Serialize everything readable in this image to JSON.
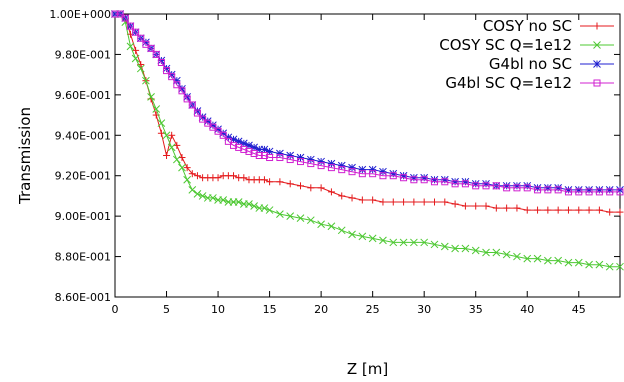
{
  "chart_data": {
    "type": "line",
    "xlabel": "Z [m]",
    "ylabel": "Transmission",
    "xlim": [
      0,
      49
    ],
    "ylim": [
      0.86,
      1.0
    ],
    "grid": false,
    "legend_position": "top-right",
    "x_ticks": [
      {
        "value": 0,
        "label": "0"
      },
      {
        "value": 5,
        "label": "5"
      },
      {
        "value": 10,
        "label": "10"
      },
      {
        "value": 15,
        "label": "15"
      },
      {
        "value": 20,
        "label": "20"
      },
      {
        "value": 25,
        "label": "25"
      },
      {
        "value": 30,
        "label": "30"
      },
      {
        "value": 35,
        "label": "35"
      },
      {
        "value": 40,
        "label": "40"
      },
      {
        "value": 45,
        "label": "45"
      }
    ],
    "y_ticks": [
      {
        "value": 0.86,
        "label": "8.60E-001"
      },
      {
        "value": 0.88,
        "label": "8.80E-001"
      },
      {
        "value": 0.9,
        "label": "9.00E-001"
      },
      {
        "value": 0.92,
        "label": "9.20E-001"
      },
      {
        "value": 0.94,
        "label": "9.40E-001"
      },
      {
        "value": 0.96,
        "label": "9.60E-001"
      },
      {
        "value": 0.98,
        "label": "9.80E-001"
      },
      {
        "value": 1.0,
        "label": "1.00E+000"
      }
    ],
    "series": [
      {
        "name": "COSY no SC",
        "color": "#e41a1c",
        "marker": "plus",
        "x": [
          0,
          0.5,
          1,
          1.5,
          2,
          2.5,
          3,
          3.5,
          4,
          4.5,
          5,
          5.5,
          6,
          6.5,
          7,
          7.5,
          8,
          8.5,
          9,
          9.5,
          10,
          10.5,
          11,
          11.5,
          12,
          12.5,
          13,
          13.5,
          14,
          14.5,
          15,
          16,
          17,
          18,
          19,
          20,
          21,
          22,
          23,
          24,
          25,
          26,
          27,
          28,
          29,
          30,
          31,
          32,
          33,
          34,
          35,
          36,
          37,
          38,
          39,
          40,
          41,
          42,
          43,
          44,
          45,
          46,
          47,
          48,
          49
        ],
        "y": [
          1.0,
          1.0,
          0.998,
          0.99,
          0.982,
          0.975,
          0.967,
          0.958,
          0.95,
          0.941,
          0.93,
          0.94,
          0.935,
          0.929,
          0.924,
          0.921,
          0.92,
          0.919,
          0.919,
          0.919,
          0.919,
          0.92,
          0.92,
          0.92,
          0.919,
          0.919,
          0.918,
          0.918,
          0.918,
          0.918,
          0.917,
          0.917,
          0.916,
          0.915,
          0.914,
          0.914,
          0.912,
          0.91,
          0.909,
          0.908,
          0.908,
          0.907,
          0.907,
          0.907,
          0.907,
          0.907,
          0.907,
          0.907,
          0.906,
          0.905,
          0.905,
          0.905,
          0.904,
          0.904,
          0.904,
          0.903,
          0.903,
          0.903,
          0.903,
          0.903,
          0.903,
          0.903,
          0.903,
          0.902,
          0.902
        ]
      },
      {
        "name": "COSY SC Q=1e12",
        "color": "#4dc832",
        "marker": "cross",
        "x": [
          0,
          0.5,
          1,
          1.5,
          2,
          2.5,
          3,
          3.5,
          4,
          4.5,
          5,
          5.5,
          6,
          6.5,
          7,
          7.5,
          8,
          8.5,
          9,
          9.5,
          10,
          10.5,
          11,
          11.5,
          12,
          12.5,
          13,
          13.5,
          14,
          14.5,
          15,
          16,
          17,
          18,
          19,
          20,
          21,
          22,
          23,
          24,
          25,
          26,
          27,
          28,
          29,
          30,
          31,
          32,
          33,
          34,
          35,
          36,
          37,
          38,
          39,
          40,
          41,
          42,
          43,
          44,
          45,
          46,
          47,
          48,
          49
        ],
        "y": [
          1.0,
          1.0,
          0.996,
          0.984,
          0.978,
          0.973,
          0.967,
          0.959,
          0.953,
          0.946,
          0.94,
          0.934,
          0.928,
          0.924,
          0.918,
          0.913,
          0.911,
          0.91,
          0.909,
          0.909,
          0.908,
          0.908,
          0.907,
          0.907,
          0.907,
          0.906,
          0.906,
          0.905,
          0.904,
          0.904,
          0.903,
          0.901,
          0.9,
          0.899,
          0.898,
          0.896,
          0.895,
          0.893,
          0.891,
          0.89,
          0.889,
          0.888,
          0.887,
          0.887,
          0.887,
          0.887,
          0.886,
          0.885,
          0.884,
          0.884,
          0.883,
          0.882,
          0.882,
          0.881,
          0.88,
          0.879,
          0.879,
          0.878,
          0.878,
          0.877,
          0.877,
          0.876,
          0.876,
          0.875,
          0.875
        ]
      },
      {
        "name": "G4bl no SC",
        "color": "#1f1fd0",
        "marker": "star",
        "x": [
          0,
          0.5,
          1,
          1.5,
          2,
          2.5,
          3,
          3.5,
          4,
          4.5,
          5,
          5.5,
          6,
          6.5,
          7,
          7.5,
          8,
          8.5,
          9,
          9.5,
          10,
          10.5,
          11,
          11.5,
          12,
          12.5,
          13,
          13.5,
          14,
          14.5,
          15,
          16,
          17,
          18,
          19,
          20,
          21,
          22,
          23,
          24,
          25,
          26,
          27,
          28,
          29,
          30,
          31,
          32,
          33,
          34,
          35,
          36,
          37,
          38,
          39,
          40,
          41,
          42,
          43,
          44,
          45,
          46,
          47,
          48,
          49
        ],
        "y": [
          1.0,
          1.0,
          0.998,
          0.994,
          0.991,
          0.988,
          0.986,
          0.983,
          0.98,
          0.977,
          0.973,
          0.97,
          0.967,
          0.963,
          0.959,
          0.955,
          0.952,
          0.949,
          0.947,
          0.945,
          0.943,
          0.941,
          0.939,
          0.938,
          0.937,
          0.936,
          0.935,
          0.934,
          0.933,
          0.933,
          0.932,
          0.931,
          0.93,
          0.929,
          0.928,
          0.927,
          0.926,
          0.925,
          0.924,
          0.923,
          0.923,
          0.922,
          0.921,
          0.92,
          0.919,
          0.919,
          0.918,
          0.918,
          0.917,
          0.917,
          0.916,
          0.916,
          0.915,
          0.915,
          0.915,
          0.915,
          0.914,
          0.914,
          0.914,
          0.913,
          0.913,
          0.913,
          0.913,
          0.913,
          0.913
        ]
      },
      {
        "name": "G4bl SC Q=1e12",
        "color": "#d020d0",
        "marker": "square",
        "x": [
          0,
          0.5,
          1,
          1.5,
          2,
          2.5,
          3,
          3.5,
          4,
          4.5,
          5,
          5.5,
          6,
          6.5,
          7,
          7.5,
          8,
          8.5,
          9,
          9.5,
          10,
          10.5,
          11,
          11.5,
          12,
          12.5,
          13,
          13.5,
          14,
          14.5,
          15,
          16,
          17,
          18,
          19,
          20,
          21,
          22,
          23,
          24,
          25,
          26,
          27,
          28,
          29,
          30,
          31,
          32,
          33,
          34,
          35,
          36,
          37,
          38,
          39,
          40,
          41,
          42,
          43,
          44,
          45,
          46,
          47,
          48,
          49
        ],
        "y": [
          1.0,
          1.0,
          0.998,
          0.994,
          0.991,
          0.988,
          0.985,
          0.983,
          0.98,
          0.976,
          0.972,
          0.969,
          0.965,
          0.962,
          0.958,
          0.955,
          0.951,
          0.948,
          0.946,
          0.944,
          0.942,
          0.94,
          0.937,
          0.935,
          0.934,
          0.933,
          0.932,
          0.931,
          0.93,
          0.93,
          0.929,
          0.929,
          0.928,
          0.927,
          0.926,
          0.925,
          0.924,
          0.923,
          0.922,
          0.921,
          0.921,
          0.92,
          0.92,
          0.919,
          0.918,
          0.918,
          0.917,
          0.917,
          0.916,
          0.916,
          0.915,
          0.915,
          0.915,
          0.914,
          0.914,
          0.914,
          0.913,
          0.913,
          0.913,
          0.912,
          0.912,
          0.912,
          0.912,
          0.912,
          0.912
        ]
      }
    ]
  }
}
